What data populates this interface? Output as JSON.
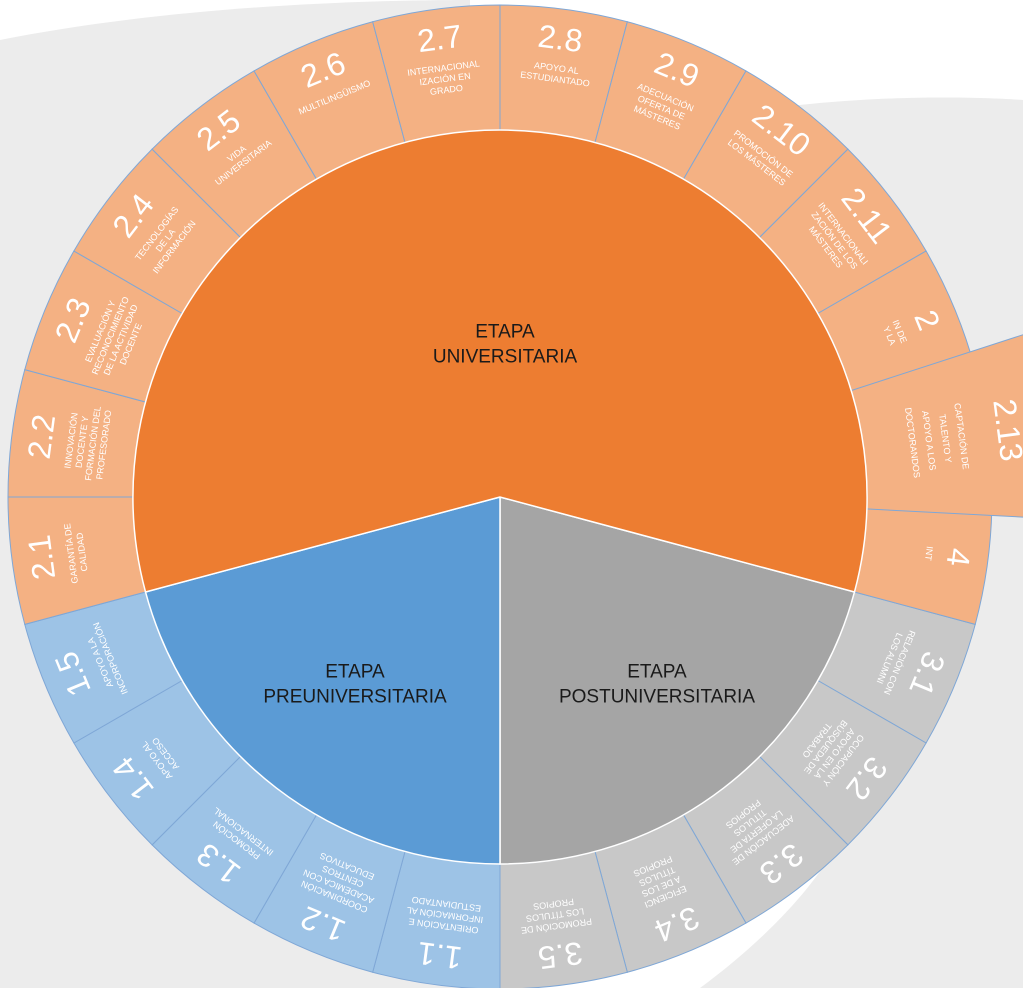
{
  "stages": [
    {
      "group": "universitaria",
      "lines": [
        "ETAPA",
        "UNIVERSITARIA"
      ]
    },
    {
      "group": "preuniversitaria",
      "lines": [
        "ETAPA",
        "PREUNIVERSITARIA"
      ]
    },
    {
      "group": "postuniversitaria",
      "lines": [
        "ETAPA",
        "POSTUNIVERSITARIA"
      ]
    }
  ],
  "segments": {
    "postuniversitaria": [
      {
        "number": "3.1",
        "lines": [
          "RELACIÓN CON",
          "LOS ALUMNI"
        ]
      },
      {
        "number": "3.2",
        "lines": [
          "OCUPACIÓN Y",
          "APOYO EN LA",
          "BÚSQUEDA DE",
          "TRABAJO"
        ]
      },
      {
        "number": "3.3",
        "lines": [
          "ADECUACIÓN DE",
          "LA OFERTA DE",
          "TÍTULOS",
          "PROPIOS"
        ]
      },
      {
        "number": "3.4",
        "lines": [
          "EFICIENCI",
          "A DE LOS",
          "TÍTULOS",
          "PROPIOS"
        ]
      },
      {
        "number": "3.5",
        "lines": [
          "PROMOCIÓN DE",
          "LOS TÍTULOS",
          "PROPIOS"
        ]
      }
    ],
    "preuniversitaria": [
      {
        "number": "1.1",
        "lines": [
          "ORIENTACIÓN E",
          "INFORMACIÓN AL",
          "ESTUDIANTADO"
        ]
      },
      {
        "number": "1.2",
        "lines": [
          "COORDINACIÓN",
          "ACADÉMICA CON",
          "CENTROS",
          "EDUCATIVOS"
        ]
      },
      {
        "number": "1.3",
        "lines": [
          "PROMOCIÓN",
          "INTERNACIONAL"
        ]
      },
      {
        "number": "1.4",
        "lines": [
          "APOYO AL",
          "ACCESO"
        ]
      },
      {
        "number": "1.5",
        "lines": [
          "APOYO A LA",
          "INCORPORACIÓN"
        ]
      }
    ],
    "universitaria": [
      {
        "number": "2.1",
        "lines": [
          "GARANTÍA DE",
          "CALIDAD"
        ]
      },
      {
        "number": "2.2",
        "lines": [
          "INNOVACIÓN",
          "DOCENTE Y",
          "FORMACIÓN DEL",
          "PROFESORADO"
        ]
      },
      {
        "number": "2.3",
        "lines": [
          "EVALUACIÓN Y",
          "RECONOCIMIENTO",
          "DE LA ACTIVIDAD",
          "DOCENTE"
        ]
      },
      {
        "number": "2.4",
        "lines": [
          "TECNOLOGÍAS",
          "DE LA",
          "INFORMACIÓN"
        ]
      },
      {
        "number": "2.5",
        "lines": [
          "VIDA",
          "UNIVERSITARIA"
        ]
      },
      {
        "number": "2.6",
        "lines": [
          "MULTILINGÜISMO"
        ]
      },
      {
        "number": "2.7",
        "lines": [
          "INTERNACIONAL",
          "IZACIÓN EN",
          "GRADO"
        ]
      },
      {
        "number": "2.8",
        "lines": [
          "APOYO AL",
          "ESTUDIANTADO"
        ]
      },
      {
        "number": "2.9",
        "lines": [
          "ADECUACIÓN",
          "OFERTA DE",
          "MÁSTERES"
        ]
      },
      {
        "number": "2.10",
        "lines": [
          "PROMOCIÓN DE",
          "LOS MÁSTERES"
        ]
      },
      {
        "number": "2.11",
        "lines": [
          "INTERNACIONALI",
          "ZACIÓN DE LOS",
          "MÁSTERES"
        ]
      },
      {
        "number": "2",
        "lines": [
          "IN DE",
          "Y LA"
        ]
      },
      {
        "number": "2.13",
        "lines": [
          "CAPTACIÓN DE",
          "TALENTO Y",
          "APOYO A LOS",
          "DOCTORANDOS"
        ]
      },
      {
        "number": "4",
        "lines": [
          "INT"
        ]
      }
    ]
  }
}
